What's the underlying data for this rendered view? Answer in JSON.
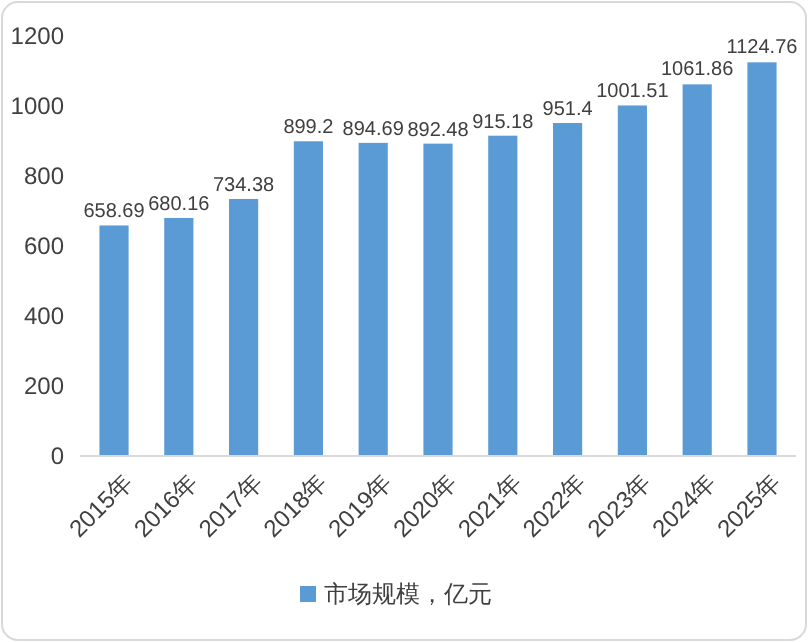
{
  "chart_data": {
    "type": "bar",
    "categories": [
      "2015年",
      "2016年",
      "2017年",
      "2018年",
      "2019年",
      "2020年",
      "2021年",
      "2022年",
      "2023年",
      "2024年",
      "2025年"
    ],
    "series": [
      {
        "name": "市场规模，亿元",
        "color": "#5b9bd5",
        "values": [
          658.69,
          680.16,
          734.38,
          899.2,
          894.69,
          892.48,
          915.18,
          951.4,
          1001.51,
          1061.86,
          1124.76
        ]
      }
    ],
    "ylim": [
      0,
      1200
    ],
    "yticks": [
      0,
      200,
      400,
      600,
      800,
      1000,
      1200
    ],
    "data_labels": true,
    "legend": "bottom",
    "grid": false
  }
}
